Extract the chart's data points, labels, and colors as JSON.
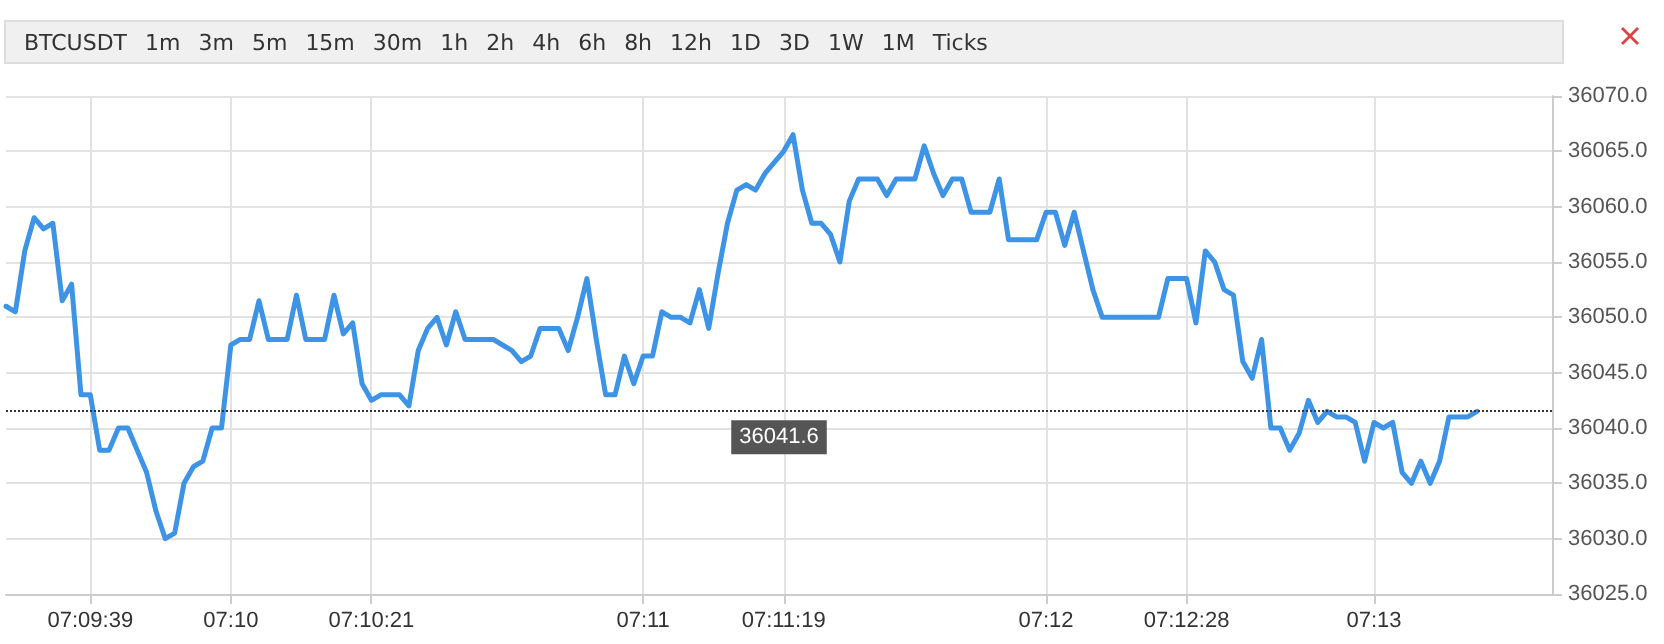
{
  "chart_data": {
    "type": "line",
    "title": "BTCUSDT",
    "annotations": [
      "1m",
      "3m",
      "5m",
      "15m",
      "30m",
      "1h",
      "2h",
      "4h",
      "6h",
      "8h",
      "12h",
      "1D",
      "3D",
      "1W",
      "1M",
      "Ticks"
    ],
    "categories": [
      null,
      null,
      null,
      null,
      null,
      null,
      null,
      null,
      null,
      "07:09:39",
      null,
      null,
      null,
      null,
      null,
      null,
      null,
      null,
      null,
      null,
      null,
      null,
      null,
      null,
      "07:10",
      null,
      null,
      null,
      null,
      null,
      null,
      null,
      null,
      null,
      null,
      null,
      null,
      null,
      null,
      "07:10:21",
      null,
      null,
      null,
      null,
      null,
      null,
      null,
      null,
      null,
      null,
      null,
      null,
      null,
      null,
      null,
      null,
      null,
      null,
      null,
      null,
      null,
      null,
      null,
      null,
      null,
      null,
      null,
      null,
      "07:11",
      null,
      null,
      null,
      null,
      null,
      null,
      null,
      null,
      null,
      null,
      null,
      null,
      null,
      null,
      "07:11:19",
      null,
      null,
      null,
      null,
      null,
      null,
      null,
      null,
      null,
      null,
      null,
      null,
      null,
      null,
      null,
      null,
      null,
      null,
      null,
      null,
      null,
      null,
      null,
      null,
      null,
      null,
      null,
      "07:12",
      null,
      null,
      null,
      null,
      null,
      null,
      null,
      null,
      null,
      null,
      null,
      null,
      null,
      null,
      "07:12:28",
      null,
      null,
      null,
      null,
      null,
      null,
      null,
      null,
      null,
      null,
      null,
      null,
      null,
      null,
      null,
      null,
      null,
      null,
      null,
      "07:13",
      null,
      null,
      null,
      null,
      null,
      null,
      null,
      null,
      null,
      null,
      null,
      null,
      null,
      null,
      null,
      null,
      null,
      null,
      null
    ],
    "series": [
      {
        "color": "#3d94e6",
        "values": [
          36051,
          36050.5,
          36056,
          36059,
          36058,
          36058.5,
          36051.5,
          36053,
          36043,
          36043,
          36038,
          36038,
          36040,
          36040,
          36038,
          36036,
          36032.5,
          36030,
          36030.5,
          36035,
          36036.5,
          36037,
          36040,
          36040,
          36047.5,
          36048,
          36048,
          36051.5,
          36048,
          36048,
          36048,
          36052,
          36048,
          36048,
          36048,
          36052,
          36048.5,
          36049.5,
          36044,
          36042.5,
          36043,
          36043,
          36043,
          36042,
          36047,
          36049,
          36050,
          36047.5,
          36050.5,
          36048,
          36048,
          36048,
          36048,
          36047.5,
          36047,
          36046,
          36046.5,
          36049,
          36049,
          36049,
          36047,
          36050,
          36053.5,
          36048,
          36043,
          36043,
          36046.5,
          36044,
          36046.5,
          36046.5,
          36050.5,
          36050,
          36050,
          36049.5,
          36052.5,
          36049,
          36054,
          36058.5,
          36061.5,
          36062,
          36061.5,
          36063,
          36064,
          36065,
          36066.5,
          36061.5,
          36058.5,
          36058.5,
          36057.5,
          36055,
          36060.5,
          36062.5,
          36062.5,
          36062.5,
          36061,
          36062.5,
          36062.5,
          36062.5,
          36065.5,
          36063,
          36061,
          36062.5,
          36062.5,
          36059.5,
          36059.5,
          36059.5,
          36062.5,
          36057,
          36057,
          36057,
          36057,
          36059.5,
          36059.5,
          36056.5,
          36059.5,
          36056,
          36052.5,
          36050,
          36050,
          36050,
          36050,
          36050,
          36050,
          36050,
          36053.5,
          36053.5,
          36053.5,
          36049.5,
          36056,
          36055,
          36052.5,
          36052,
          36046,
          36044.5,
          36048,
          36040,
          36040,
          36038,
          36039.5,
          36042.5,
          36040.5,
          36041.5,
          36041,
          36041,
          36040.5,
          36037,
          36040.5,
          36040,
          36040.5,
          36036,
          36035,
          36037,
          36035,
          36037,
          36041,
          36041,
          36041,
          36041.5,
          null,
          null,
          null,
          null,
          null,
          null,
          null,
          null
        ]
      }
    ],
    "ylim": [
      36025,
      36070
    ],
    "yticks": [
      {
        "value": 36025,
        "label": "36025.0"
      },
      {
        "value": 36030,
        "label": "36030.0"
      },
      {
        "value": 36035,
        "label": "36035.0"
      },
      {
        "value": 36040,
        "label": "36040.0"
      },
      {
        "value": 36045,
        "label": "36045.0"
      },
      {
        "value": 36050,
        "label": "36050.0"
      },
      {
        "value": 36055,
        "label": "36055.0"
      },
      {
        "value": 36060,
        "label": "36060.0"
      },
      {
        "value": 36065,
        "label": "36065.0"
      },
      {
        "value": 36070,
        "label": "36070.0"
      }
    ],
    "ref_lines": [
      {
        "axis": "y",
        "value": 36041.6,
        "label": "36041.6",
        "line_style": "dotted",
        "color": "#333333"
      }
    ],
    "grid": true,
    "marker": "none",
    "line_style": "solid"
  }
}
